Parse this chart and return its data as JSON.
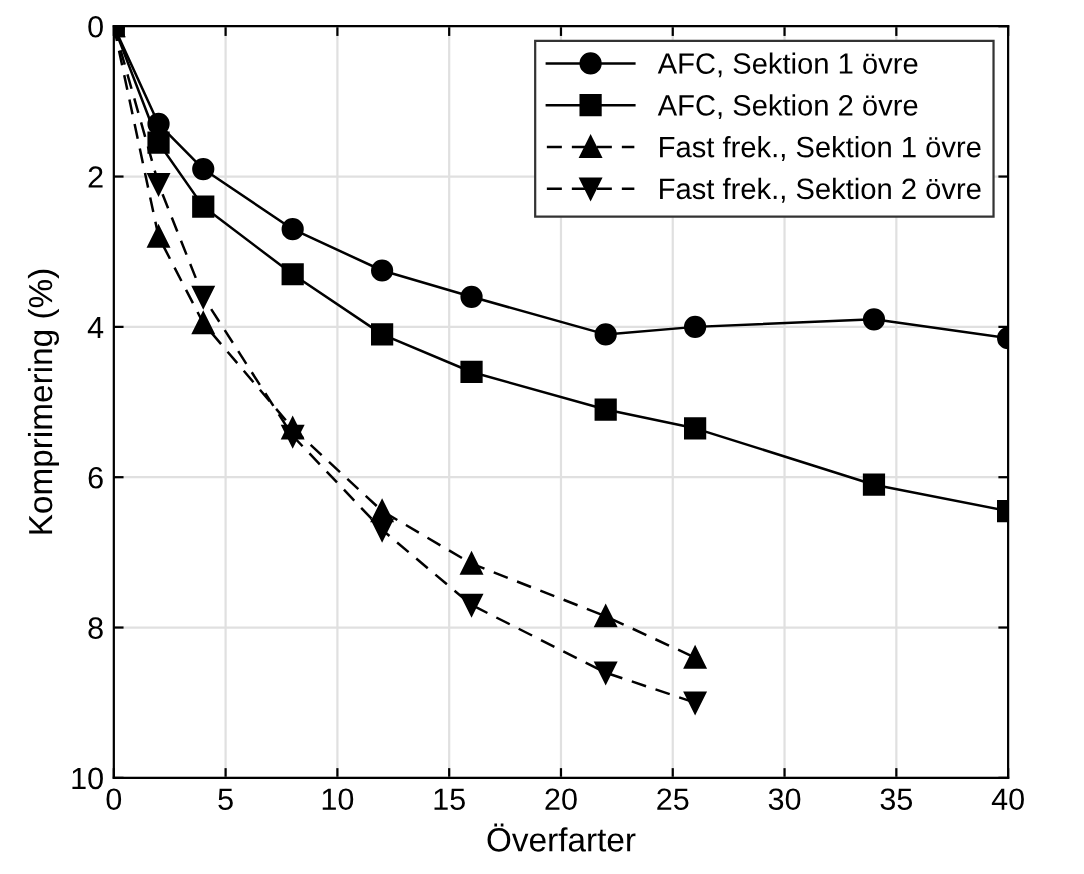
{
  "chart_data": {
    "type": "line",
    "xlabel": "Överfarter",
    "ylabel": "Komprimering (%)",
    "xlim": [
      0,
      40
    ],
    "xticks": [
      0,
      5,
      10,
      15,
      20,
      25,
      30,
      35,
      40
    ],
    "ylim": [
      10,
      0
    ],
    "yticks": [
      0,
      2,
      4,
      6,
      8,
      10
    ],
    "grid": true,
    "legend": "top right",
    "series": [
      {
        "name": "AFC, Sektion 1 övre",
        "color": "#000000",
        "marker": "circle",
        "line_style": "solid",
        "x": [
          0,
          2,
          4,
          8,
          12,
          16,
          22,
          26,
          34,
          40
        ],
        "values": [
          0,
          1.3,
          1.9,
          2.7,
          3.25,
          3.6,
          4.1,
          4.0,
          3.9,
          4.15
        ]
      },
      {
        "name": "AFC, Sektion 2 övre",
        "color": "#000000",
        "marker": "square",
        "line_style": "solid",
        "x": [
          0,
          2,
          4,
          8,
          12,
          16,
          22,
          26,
          34,
          40
        ],
        "values": [
          0,
          1.55,
          2.4,
          3.3,
          4.1,
          4.6,
          5.1,
          5.35,
          6.1,
          6.45
        ]
      },
      {
        "name": "Fast frek., Sektion 1 övre",
        "color": "#000000",
        "marker": "triangle",
        "line_style": "dashed",
        "x": [
          0,
          2,
          4,
          8,
          12,
          16,
          22,
          26
        ],
        "values": [
          0,
          2.8,
          3.95,
          5.35,
          6.45,
          7.15,
          7.85,
          8.4
        ]
      },
      {
        "name": "Fast frek., Sektion 2 övre",
        "color": "#000000",
        "marker": "triangle_down",
        "line_style": "dashed",
        "x": [
          0,
          2,
          4,
          8,
          12,
          16,
          22,
          26
        ],
        "values": [
          0,
          2.1,
          3.6,
          5.45,
          6.7,
          7.7,
          8.6,
          9.0
        ]
      }
    ]
  }
}
